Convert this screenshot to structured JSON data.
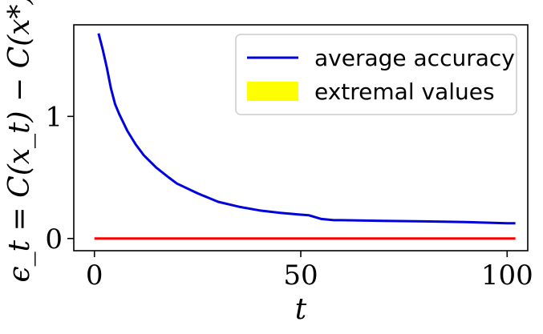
{
  "chart_data": {
    "type": "line",
    "xlabel": "t",
    "ylabel": "ϵ_t = C(x_t) − C(x*)",
    "xlim": [
      -5,
      105
    ],
    "ylim": [
      -0.1,
      1.75
    ],
    "x_ticks": [
      0,
      50,
      100
    ],
    "x_tick_labels": [
      "0",
      "50",
      "100"
    ],
    "y_ticks": [
      0,
      1
    ],
    "y_tick_labels": [
      "0",
      "1"
    ],
    "grid": false,
    "legend_position": "top-right",
    "legend": [
      {
        "label": "average accuracy",
        "style": "line",
        "color": "#0000dd"
      },
      {
        "label": "extremal values",
        "style": "patch",
        "color": "#ffff00"
      }
    ],
    "series": [
      {
        "name": "average accuracy",
        "color": "#0000dd",
        "x": [
          1,
          2,
          3,
          4,
          5,
          6,
          8,
          10,
          12,
          15,
          18,
          20,
          25,
          30,
          35,
          40,
          45,
          50,
          52,
          55,
          58,
          60,
          70,
          80,
          90,
          100,
          102
        ],
        "y": [
          1.68,
          1.55,
          1.4,
          1.23,
          1.1,
          1.02,
          0.88,
          0.77,
          0.68,
          0.58,
          0.5,
          0.45,
          0.37,
          0.3,
          0.26,
          0.23,
          0.21,
          0.195,
          0.19,
          0.16,
          0.15,
          0.15,
          0.145,
          0.14,
          0.135,
          0.125,
          0.125
        ]
      },
      {
        "name": "extremal values",
        "color": "#ff0000",
        "x": [
          0,
          102
        ],
        "y": [
          0,
          0
        ]
      }
    ]
  }
}
